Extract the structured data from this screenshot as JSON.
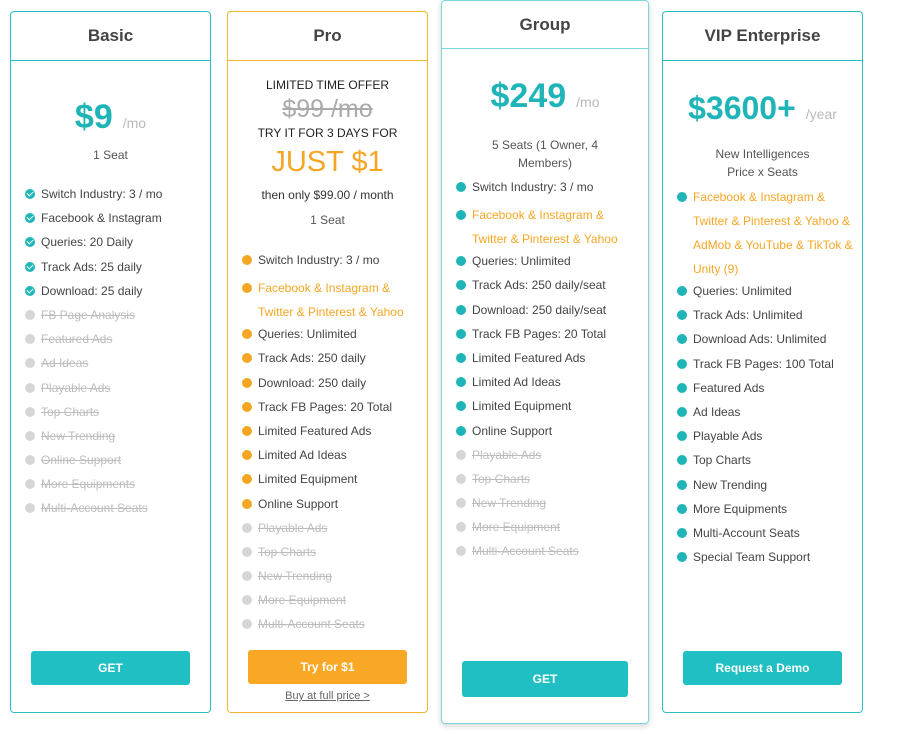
{
  "colors": {
    "teal": "#1fb5b8",
    "orange": "#f5a623",
    "grey": "#d6d6d6"
  },
  "plans": {
    "basic": {
      "title": "Basic",
      "price": "$9",
      "period": "/mo",
      "seats": "1 Seat",
      "features": [
        {
          "label": "Switch Industry: 3 / mo",
          "status": "check"
        },
        {
          "label": "Facebook & Instagram",
          "status": "check"
        },
        {
          "label": "Queries: 20 Daily",
          "status": "check"
        },
        {
          "label": "Track Ads: 25 daily",
          "status": "check"
        },
        {
          "label": "Download: 25 daily",
          "status": "check"
        },
        {
          "label": "FB Page Analysis",
          "status": "disabled"
        },
        {
          "label": "Featured Ads",
          "status": "disabled"
        },
        {
          "label": "Ad Ideas",
          "status": "disabled"
        },
        {
          "label": "Playable Ads",
          "status": "disabled"
        },
        {
          "label": "Top Charts",
          "status": "disabled"
        },
        {
          "label": "New Trending",
          "status": "disabled"
        },
        {
          "label": "Online Support",
          "status": "disabled"
        },
        {
          "label": "More Equipments",
          "status": "disabled"
        },
        {
          "label": "Multi-Account Seats",
          "status": "disabled"
        }
      ],
      "button": "GET"
    },
    "pro": {
      "title": "Pro",
      "offer_line": "LIMITED TIME OFFER",
      "old_price": "$99 /mo",
      "trial_line": "TRY IT FOR 3 DAYS FOR",
      "just_price": "JUST $1",
      "then_line": "then only $99.00 / month",
      "seats": "1 Seat",
      "features": [
        {
          "label": "Switch Industry: 3 / mo",
          "status": "active"
        },
        {
          "label": "Facebook & Instagram & Twitter & Pinterest & Yahoo",
          "status": "highlight"
        },
        {
          "label": "Queries: Unlimited",
          "status": "active"
        },
        {
          "label": "Track Ads: 250 daily",
          "status": "active"
        },
        {
          "label": "Download: 250 daily",
          "status": "active"
        },
        {
          "label": "Track FB Pages: 20 Total",
          "status": "active"
        },
        {
          "label": "Limited Featured Ads",
          "status": "active"
        },
        {
          "label": "Limited Ad Ideas",
          "status": "active"
        },
        {
          "label": "Limited Equipment",
          "status": "active"
        },
        {
          "label": "Online Support",
          "status": "active"
        },
        {
          "label": "Playable Ads",
          "status": "disabled"
        },
        {
          "label": "Top Charts",
          "status": "disabled"
        },
        {
          "label": "New Trending",
          "status": "disabled"
        },
        {
          "label": "More Equipment",
          "status": "disabled"
        },
        {
          "label": "Multi-Account Seats",
          "status": "disabled"
        }
      ],
      "button": "Try for $1",
      "full_price_link": "Buy at full price >"
    },
    "group": {
      "title": "Group",
      "price": "$249",
      "period": "/mo",
      "seats": "5 Seats (1 Owner, 4 Members)",
      "features": [
        {
          "label": "Switch Industry: 3 / mo",
          "status": "active"
        },
        {
          "label": "Facebook & Instagram & Twitter & Pinterest & Yahoo",
          "status": "highlight"
        },
        {
          "label": "Queries: Unlimited",
          "status": "active"
        },
        {
          "label": "Track Ads: 250 daily/seat",
          "status": "active"
        },
        {
          "label": "Download: 250 daily/seat",
          "status": "active"
        },
        {
          "label": "Track FB Pages: 20 Total",
          "status": "active"
        },
        {
          "label": "Limited Featured Ads",
          "status": "active"
        },
        {
          "label": "Limited Ad Ideas",
          "status": "active"
        },
        {
          "label": "Limited Equipment",
          "status": "active"
        },
        {
          "label": "Online Support",
          "status": "active"
        },
        {
          "label": "Playable Ads",
          "status": "disabled"
        },
        {
          "label": "Top Charts",
          "status": "disabled"
        },
        {
          "label": "New Trending",
          "status": "disabled"
        },
        {
          "label": "More Equipment",
          "status": "disabled"
        },
        {
          "label": "Multi-Account Seats",
          "status": "disabled"
        }
      ],
      "button": "GET"
    },
    "vip": {
      "title": "VIP Enterprise",
      "price": "$3600+",
      "period": "/year",
      "seats": "New Intelligences Price x Seats",
      "features": [
        {
          "label": "Facebook & Instagram & Twitter & Pinterest & Yahoo & AdMob & YouTube & TikTok & Unity  (9)",
          "status": "highlight"
        },
        {
          "label": "Queries: Unlimited",
          "status": "active"
        },
        {
          "label": "Track Ads: Unlimited",
          "status": "active"
        },
        {
          "label": "Download Ads: Unlimited",
          "status": "active"
        },
        {
          "label": "Track FB Pages: 100 Total",
          "status": "active"
        },
        {
          "label": "Featured Ads",
          "status": "active"
        },
        {
          "label": "Ad Ideas",
          "status": "active"
        },
        {
          "label": "Playable Ads",
          "status": "active"
        },
        {
          "label": "Top Charts",
          "status": "active"
        },
        {
          "label": "New Trending",
          "status": "active"
        },
        {
          "label": "More Equipments",
          "status": "active"
        },
        {
          "label": "Multi-Account Seats",
          "status": "active"
        },
        {
          "label": "Special Team Support",
          "status": "active"
        }
      ],
      "button": "Request a Demo"
    }
  }
}
